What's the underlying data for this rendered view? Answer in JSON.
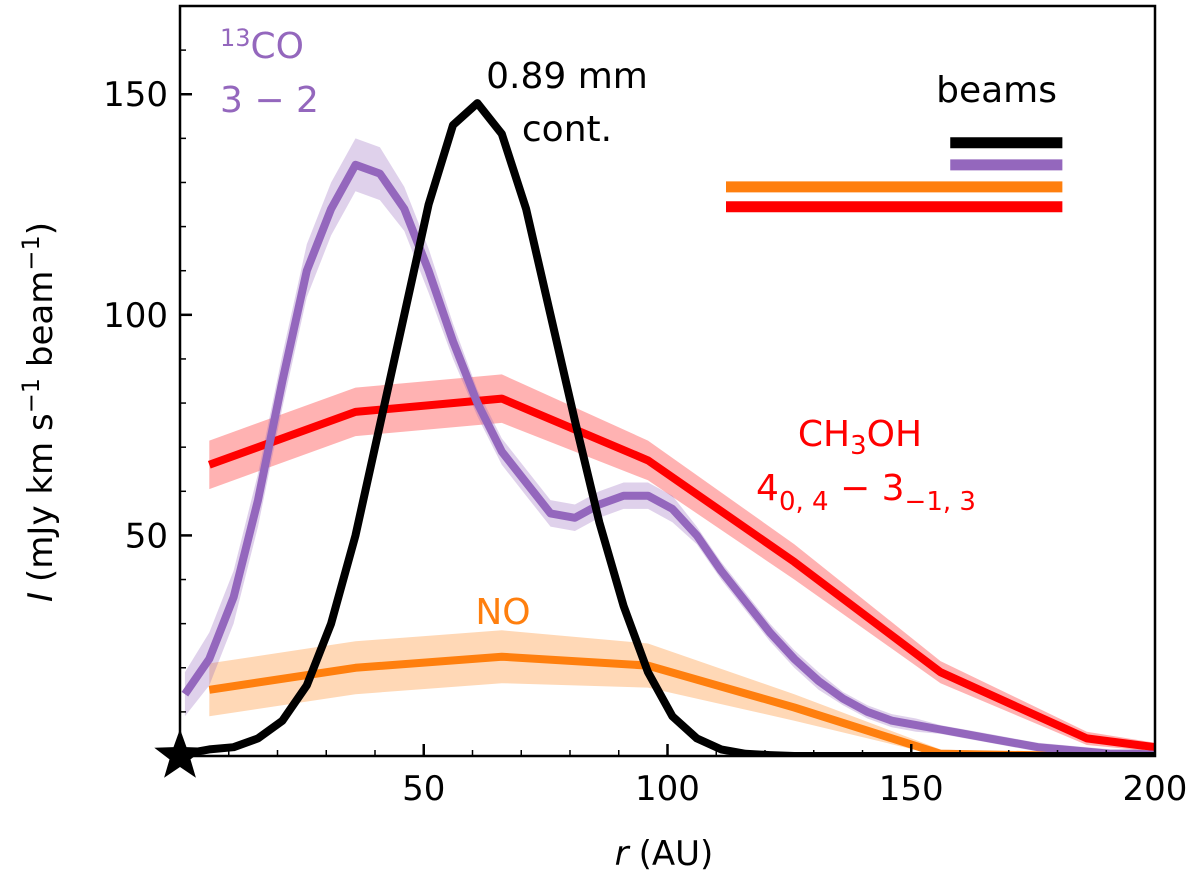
{
  "chart_data": {
    "type": "line",
    "title": "",
    "xlabel": "(AU)",
    "xlabel_symbol": "r",
    "ylabel": "(mJy km s",
    "ylabel_symbol": "I",
    "ylabel_exp1": "−1",
    "ylabel_mid": " beam",
    "ylabel_exp2": "−1",
    "ylabel_close": ")",
    "xlim": [
      0,
      200
    ],
    "ylim": [
      0,
      170
    ],
    "xticks": [
      50,
      100,
      150,
      200
    ],
    "yticks": [
      50,
      100,
      150
    ],
    "x_minor_step": 10,
    "y_minor_step": 10,
    "series": [
      {
        "name": "CH3OH 4(0,4) - 3(-1,3)",
        "color": "#ff0000",
        "x": [
          6,
          36,
          66,
          96,
          126,
          156,
          186,
          200
        ],
        "y": [
          66,
          78,
          81,
          67,
          44,
          19,
          4,
          2
        ],
        "err": [
          5.5,
          5.5,
          5.5,
          4.5,
          4,
          2.5,
          1.5,
          1
        ]
      },
      {
        "name": "NO",
        "color": "#ff7f0e",
        "x": [
          6,
          36,
          66,
          96,
          126,
          156,
          186,
          200
        ],
        "y": [
          15,
          20,
          22.5,
          20.5,
          11,
          0.5,
          0,
          0
        ],
        "err": [
          6,
          6,
          6,
          5,
          3,
          1,
          0.5,
          0.5
        ]
      },
      {
        "name": "13CO 3-2",
        "color": "#9467bd",
        "x": [
          1,
          6,
          11,
          16,
          21,
          26,
          31,
          36,
          41,
          46,
          51,
          56,
          61,
          66,
          71,
          76,
          81,
          86,
          91,
          96,
          101,
          106,
          111,
          116,
          121,
          126,
          131,
          136,
          141,
          146,
          151,
          156,
          161,
          166,
          171,
          176,
          181,
          186,
          191,
          196,
          200
        ],
        "y": [
          14,
          22,
          36,
          58,
          85,
          110,
          124,
          134,
          132,
          124,
          110,
          94,
          80,
          69,
          62,
          55,
          54,
          57,
          59,
          59,
          56,
          50,
          42,
          35,
          28,
          22,
          17,
          13,
          10,
          8,
          7,
          6,
          5,
          4,
          3,
          2,
          1.5,
          1,
          0.5,
          0.5,
          0.3
        ],
        "err": [
          5,
          6,
          6,
          6,
          6,
          6,
          6,
          6,
          6,
          5,
          5,
          4,
          3,
          3,
          3,
          3,
          3,
          3,
          3,
          3,
          3,
          2,
          2,
          2,
          2,
          2,
          2,
          1.5,
          1.5,
          1.5,
          1.5,
          1,
          1,
          1,
          1,
          1,
          1,
          1,
          1,
          1,
          1
        ]
      },
      {
        "name": "0.89 mm cont.",
        "color": "#000000",
        "x": [
          1,
          6,
          11,
          16,
          21,
          26,
          31,
          36,
          41,
          46,
          51,
          56,
          61,
          66,
          71,
          76,
          81,
          86,
          91,
          96,
          101,
          106,
          111,
          116,
          121,
          126,
          131,
          136,
          141,
          146,
          151,
          156,
          161,
          166,
          171,
          176,
          181,
          186,
          191,
          196,
          200
        ],
        "y": [
          0.5,
          1.5,
          2,
          4,
          8,
          16,
          30,
          50,
          75,
          100,
          125,
          143,
          148,
          141,
          124,
          100,
          76,
          53,
          34,
          19,
          9,
          4,
          1.5,
          0.5,
          0.2,
          0,
          0,
          0,
          0,
          0,
          0,
          0,
          0,
          0,
          0,
          0,
          0,
          0,
          0,
          0,
          0
        ],
        "err": []
      }
    ],
    "beams": {
      "label": "beams",
      "bars": [
        {
          "color": "#000000",
          "x0": 158,
          "x1": 181,
          "y": 139
        },
        {
          "color": "#9467bd",
          "x0": 158,
          "x1": 181,
          "y": 134
        },
        {
          "color": "#ff7f0e",
          "x0": 112,
          "x1": 181,
          "y": 129
        },
        {
          "color": "#ff0000",
          "x0": 112,
          "x1": 181,
          "y": 124.5
        }
      ]
    },
    "annotations": {
      "co_sup": "13",
      "co_main": "CO",
      "co_line2": "3 − 2",
      "cont_line1": "0.89 mm",
      "cont_line2": "cont.",
      "no": "NO",
      "ch3oh_a": "CH",
      "ch3oh_sub": "3",
      "ch3oh_b": "OH",
      "trans_a": "4",
      "trans_sub1": "0, 4",
      "trans_mid": " − 3",
      "trans_sub2": "−1, 3"
    },
    "star_marker": {
      "x": 0,
      "y": 0,
      "color": "#000000"
    }
  }
}
